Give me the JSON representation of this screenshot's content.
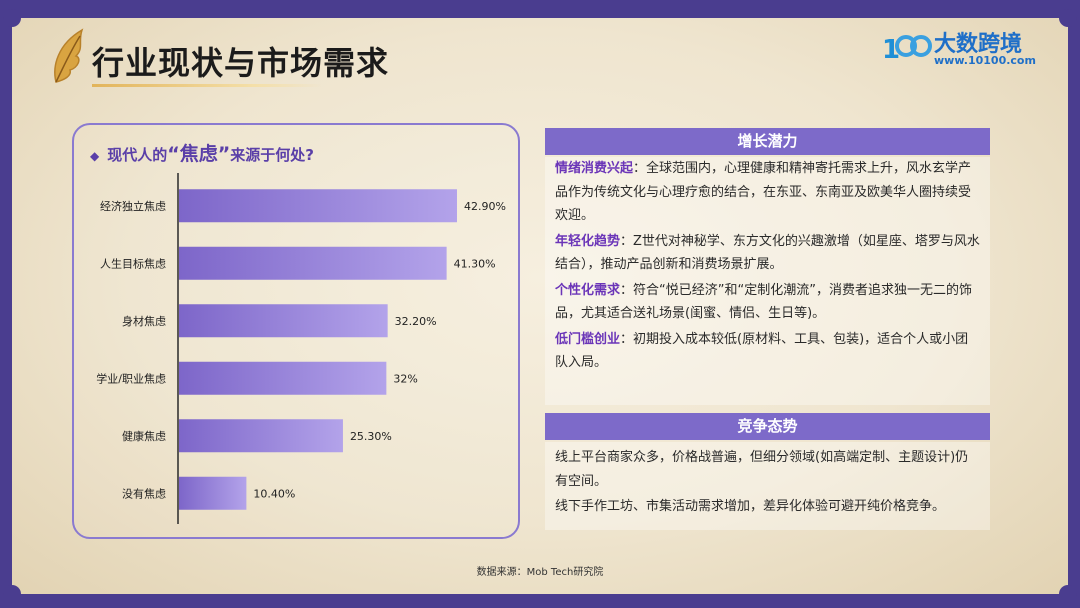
{
  "page": {
    "title": "行业现状与市场需求",
    "source": "数据来源：Mob Tech研究院"
  },
  "logo": {
    "mark": "1",
    "name": "大数跨境",
    "url": "www.10100.com"
  },
  "chart": {
    "header_prefix": "现代人的",
    "header_highlight": "“焦虑”",
    "header_suffix": "来源于何处?"
  },
  "chart_data": {
    "type": "bar",
    "orientation": "horizontal",
    "categories": [
      "经济独立焦虑",
      "人生目标焦虑",
      "身材焦虑",
      "学业/职业焦虑",
      "健康焦虑",
      "没有焦虑"
    ],
    "values": [
      42.9,
      41.3,
      32.2,
      32,
      25.3,
      10.4
    ],
    "data_labels": [
      "42.90%",
      "41.30%",
      "32.20%",
      "32%",
      "25.30%",
      "10.40%"
    ],
    "xlim": [
      0,
      50
    ],
    "bar_color_start": "#7d66c9",
    "bar_color_end": "#b3a3ea"
  },
  "growth": {
    "heading": "增长潜力",
    "items": [
      {
        "label": "情绪消费兴起",
        "text": "：全球范围内，心理健康和精神寄托需求上升，风水玄学产品作为传统文化与心理疗愈的结合，在东亚、东南亚及欧美华人圈持续受欢迎。"
      },
      {
        "label": "年轻化趋势",
        "text": "：Z世代对神秘学、东方文化的兴趣激增（如星座、塔罗与风水结合），推动产品创新和消费场景扩展。"
      },
      {
        "label": "个性化需求",
        "text": "：符合“悦已经济”和“定制化潮流”，消费者追求独一无二的饰品，尤其适合送礼场景(闺蜜、情侣、生日等)。"
      },
      {
        "label": "低门槛创业",
        "text": "：初期投入成本较低(原材料、工具、包装)，适合个人或小团队入局。"
      }
    ]
  },
  "competition": {
    "heading": "竞争态势",
    "items": [
      "线上平台商家众多，价格战普遍，但细分领域(如高端定制、主题设计)仍有空间。",
      "线下手作工坊、市集活动需求增加，差异化体验可避开纯价格竞争。"
    ]
  },
  "colors": {
    "frame": "#4a3d8f",
    "accent": "#7d6ac9",
    "keyword": "#6b35b8"
  }
}
